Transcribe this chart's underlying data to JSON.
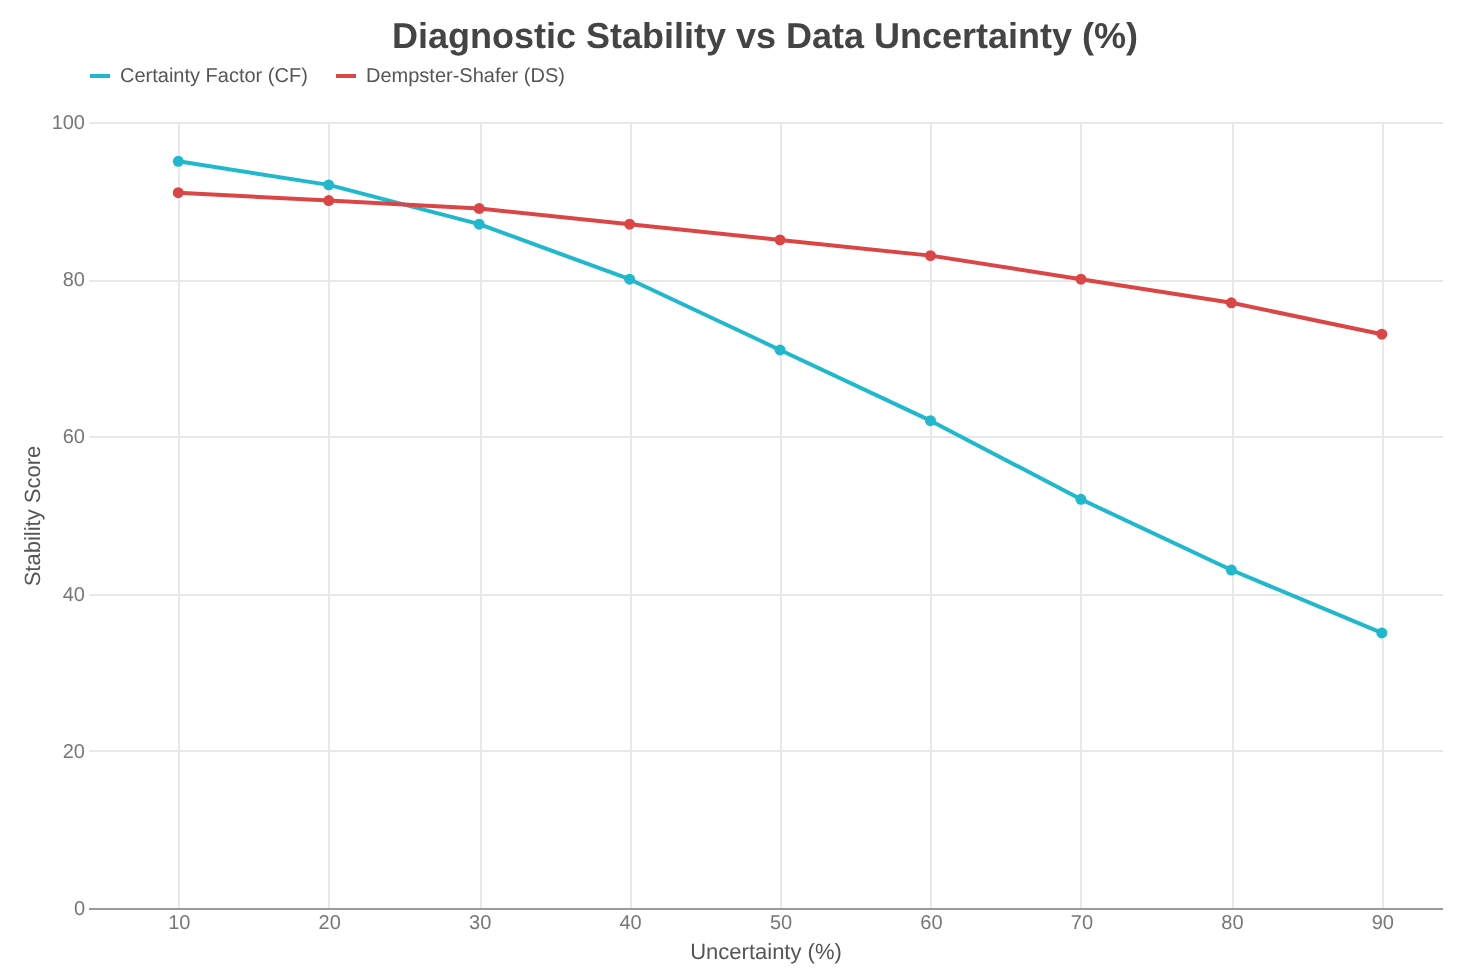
{
  "chart_data": {
    "type": "line",
    "title": "Diagnostic Stability vs Data Uncertainty (%)",
    "xlabel": "Uncertainty (%)",
    "ylabel": "Stability Score",
    "x": [
      10,
      20,
      30,
      40,
      50,
      60,
      70,
      80,
      90
    ],
    "series": [
      {
        "name": "Certainty Factor (CF)",
        "color": "#1fb8cd",
        "values": [
          95,
          92,
          87,
          80,
          71,
          62,
          52,
          43,
          35
        ]
      },
      {
        "name": "Dempster-Shafer (DS)",
        "color": "#db4545",
        "values": [
          91,
          90,
          89,
          87,
          85,
          83,
          80,
          77,
          73
        ]
      }
    ],
    "xlim": [
      4,
      94
    ],
    "xticks": [
      10,
      20,
      30,
      40,
      50,
      60,
      70,
      80,
      90
    ],
    "ylim": [
      0,
      100
    ],
    "yticks": [
      0,
      20,
      40,
      60,
      80,
      100
    ],
    "grid": true,
    "legend": "top",
    "marker": "circle",
    "line_style": "solid"
  }
}
